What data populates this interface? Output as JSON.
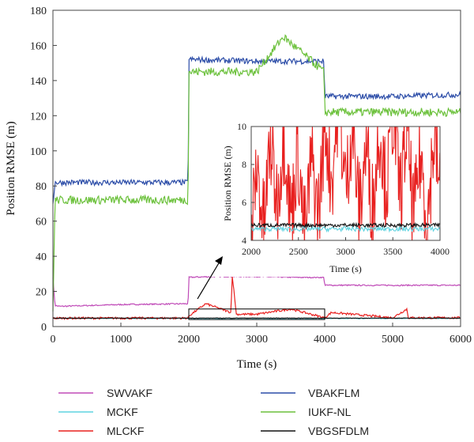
{
  "chart_data": [
    {
      "type": "line",
      "xlabel": "Time (s)",
      "ylabel": "Position RMSE (m)",
      "xlim": [
        0,
        6000
      ],
      "ylim": [
        0,
        180
      ],
      "xticks": [
        0,
        1000,
        2000,
        3000,
        4000,
        5000,
        6000
      ],
      "yticks": [
        0,
        20,
        40,
        60,
        80,
        100,
        120,
        140,
        160,
        180
      ],
      "legend_position": "bottom",
      "series": [
        {
          "name": "SWVAKF",
          "color": "#c04bb8",
          "x": [
            0,
            30,
            100,
            1000,
            1990,
            2000,
            2400,
            3000,
            3600,
            3990,
            4000,
            5000,
            6000
          ],
          "y": [
            28,
            12,
            11.5,
            12.5,
            13,
            28,
            28.5,
            28.5,
            28,
            28,
            23.5,
            23.5,
            23.5
          ]
        },
        {
          "name": "MCKF",
          "color": "#5fd3e0",
          "x": [
            0,
            1000,
            2000,
            3000,
            4000,
            5000,
            6000
          ],
          "y": [
            4.7,
            4.6,
            4.6,
            4.6,
            4.6,
            4.6,
            4.6
          ]
        },
        {
          "name": "MLCKF",
          "color": "#e8201f",
          "x": [
            0,
            1990,
            2000,
            2250,
            2620,
            2640,
            2700,
            3000,
            3500,
            3900,
            4000,
            4100,
            5000,
            5210,
            5230,
            6000
          ],
          "y": [
            4.8,
            4.8,
            6,
            13,
            8,
            29,
            7,
            7,
            10,
            6,
            5,
            8,
            5,
            10,
            5,
            5
          ]
        },
        {
          "name": "VBAKFLM",
          "color": "#2c4da8",
          "x": [
            0,
            30,
            1000,
            1990,
            2000,
            3000,
            3990,
            4000,
            5000,
            6000
          ],
          "y": [
            70,
            82,
            82,
            82,
            152,
            151,
            151,
            131,
            131,
            132
          ]
        },
        {
          "name": "IUKF-NL",
          "color": "#6cc13c",
          "x": [
            0,
            30,
            1000,
            1990,
            2000,
            3000,
            3390,
            3990,
            4000,
            5000,
            6000
          ],
          "y": [
            8,
            72,
            72,
            72,
            145,
            145,
            165,
            145,
            122,
            122,
            122
          ]
        },
        {
          "name": "VBGSFDLM",
          "color": "#111111",
          "x": [
            0,
            1000,
            2000,
            3000,
            4000,
            5000,
            6000
          ],
          "y": [
            4.8,
            4.8,
            4.8,
            4.8,
            4.8,
            4.8,
            4.8
          ]
        }
      ]
    },
    {
      "type": "line",
      "xlabel": "Time (s)",
      "ylabel": "Position RMSE (m)",
      "xlim": [
        2000,
        4000
      ],
      "ylim": [
        4,
        10
      ],
      "xticks": [
        2000,
        2500,
        3000,
        3500,
        4000
      ],
      "yticks": [
        4,
        6,
        8,
        10
      ],
      "series": [
        {
          "color": "#e8201f",
          "x": [
            2000,
            2300,
            2600,
            2900,
            3200,
            3500,
            3800,
            4000
          ],
          "y": [
            5.5,
            8,
            6,
            9.5,
            7,
            9,
            6.5,
            8
          ]
        },
        {
          "color": "#5fd3e0",
          "x": [
            2000,
            3000,
            4000
          ],
          "y": [
            4.6,
            4.6,
            4.6
          ]
        },
        {
          "color": "#111111",
          "x": [
            2000,
            3000,
            4000
          ],
          "y": [
            4.8,
            4.8,
            4.8
          ]
        }
      ]
    }
  ]
}
